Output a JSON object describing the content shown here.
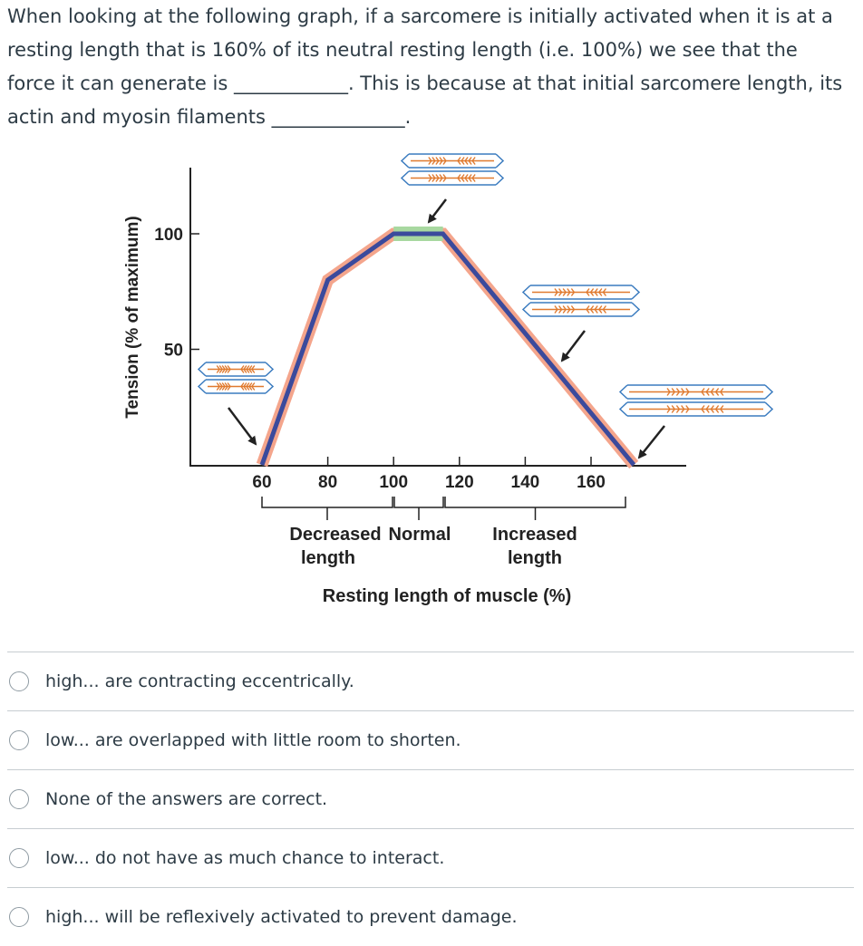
{
  "question": {
    "line1": "When looking at the following graph, if a sarcomere is initially activated when it is at a",
    "line2": "resting length that is 160% of its neutral resting length (i.e. 100%) we see that the",
    "line3": "force it can generate is ____________. This is because at that initial sarcomere length, its",
    "line4": "actin and myosin filaments ______________."
  },
  "chart_data": {
    "type": "line",
    "ylabel": "Tension (% of maximum)",
    "xlabel": "Resting length of muscle (%)",
    "x_ticks": [
      "60",
      "80",
      "100",
      "120",
      "140",
      "160"
    ],
    "y_ticks": [
      "100",
      "50"
    ],
    "x_range": [
      40,
      180
    ],
    "y_range": [
      0,
      120
    ],
    "series": [
      {
        "x": [
          60,
          80,
          100,
          115,
          173
        ],
        "y": [
          0,
          80,
          100,
          100,
          0
        ]
      }
    ],
    "groups": [
      {
        "label_line1": "Decreased",
        "label_line2": "length"
      },
      {
        "label_line1": "Normal",
        "label_line2": ""
      },
      {
        "label_line1": "Increased",
        "label_line2": "length"
      }
    ],
    "colors": {
      "line": "#3b4a9c",
      "halo": "#f4a58c",
      "plateau": "#a8d8a0",
      "filament": "#e07a2f",
      "zline": "#3a7bbf"
    }
  },
  "answers": [
    {
      "label": "high... are contracting eccentrically."
    },
    {
      "label": "low... are overlapped with little room to shorten."
    },
    {
      "label": "None of the answers are correct."
    },
    {
      "label": "low... do not have as much chance to interact."
    },
    {
      "label": "high... will be reflexively activated to prevent damage."
    }
  ]
}
